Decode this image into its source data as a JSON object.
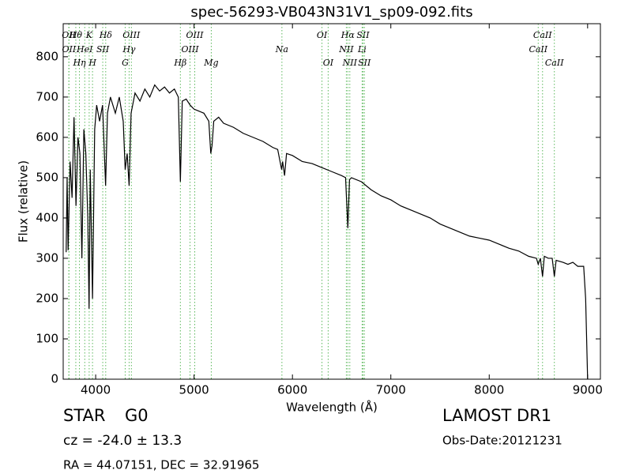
{
  "chart_data": {
    "type": "line",
    "title": "spec-56293-VB043N31V1_sp09-092.fits",
    "xlabel": "Wavelength (Å)",
    "ylabel": "Flux (relative)",
    "xlim": [
      3670,
      9130
    ],
    "ylim": [
      0,
      882
    ],
    "xticks": [
      4000,
      5000,
      6000,
      7000,
      8000,
      9000
    ],
    "yticks": [
      0,
      100,
      200,
      300,
      400,
      500,
      600,
      700,
      800
    ],
    "grid": false,
    "series": [
      {
        "color": "#000000",
        "x": [
          3700,
          3710,
          3720,
          3740,
          3760,
          3780,
          3800,
          3820,
          3840,
          3860,
          3880,
          3900,
          3920,
          3933,
          3945,
          3968,
          3990,
          4010,
          4040,
          4070,
          4101,
          4120,
          4150,
          4200,
          4240,
          4280,
          4300,
          4320,
          4340,
          4360,
          4400,
          4450,
          4500,
          4550,
          4600,
          4650,
          4700,
          4750,
          4800,
          4840,
          4861,
          4880,
          4920,
          4960,
          5000,
          5050,
          5100,
          5150,
          5170,
          5183,
          5200,
          5250,
          5300,
          5400,
          5500,
          5600,
          5700,
          5800,
          5850,
          5890,
          5900,
          5920,
          5940,
          6000,
          6100,
          6200,
          6300,
          6400,
          6500,
          6540,
          6563,
          6580,
          6600,
          6700,
          6800,
          6900,
          7000,
          7100,
          7200,
          7300,
          7400,
          7500,
          7600,
          7700,
          7800,
          7900,
          8000,
          8100,
          8200,
          8300,
          8400,
          8480,
          8498,
          8520,
          8542,
          8560,
          8600,
          8640,
          8662,
          8680,
          8750,
          8800,
          8850,
          8900,
          8960,
          8980,
          8995,
          9000
        ],
        "values": [
          315,
          500,
          320,
          540,
          450,
          650,
          430,
          600,
          560,
          300,
          620,
          560,
          400,
          175,
          520,
          200,
          620,
          680,
          640,
          680,
          480,
          660,
          700,
          660,
          700,
          640,
          520,
          560,
          480,
          660,
          710,
          690,
          720,
          700,
          730,
          715,
          725,
          710,
          720,
          700,
          490,
          690,
          695,
          680,
          670,
          665,
          660,
          640,
          560,
          580,
          640,
          650,
          635,
          625,
          610,
          600,
          590,
          575,
          570,
          520,
          540,
          505,
          560,
          555,
          540,
          535,
          525,
          515,
          505,
          500,
          375,
          495,
          500,
          490,
          470,
          455,
          445,
          430,
          420,
          410,
          400,
          385,
          375,
          365,
          355,
          350,
          345,
          335,
          325,
          318,
          305,
          300,
          285,
          300,
          255,
          305,
          300,
          300,
          255,
          295,
          290,
          285,
          290,
          280,
          280,
          200,
          50,
          0
        ]
      }
    ],
    "lines": [
      {
        "label": "Hθ",
        "x": 3798
      },
      {
        "label": "K",
        "x": 3934
      },
      {
        "label": "Hδ",
        "x": 4102
      },
      {
        "label": "OIII",
        "x": 4363
      },
      {
        "label": "OIII",
        "x": 5007
      },
      {
        "label": "OI",
        "x": 6300
      },
      {
        "label": "Hα",
        "x": 6563
      },
      {
        "label": "SII",
        "x": 6717
      },
      {
        "label": "CaII",
        "x": 8542
      },
      {
        "label": "OII",
        "x": 3727
      },
      {
        "label": "HeI",
        "x": 3889
      },
      {
        "label": "SII",
        "x": 4072
      },
      {
        "label": "Hγ",
        "x": 4340
      },
      {
        "label": "OIII",
        "x": 4959
      },
      {
        "label": "Na",
        "x": 5893
      },
      {
        "label": "NII",
        "x": 6548
      },
      {
        "label": "Li",
        "x": 6708
      },
      {
        "label": "CaII",
        "x": 8498
      },
      {
        "label": "OII",
        "x": 3729
      },
      {
        "label": "Hη",
        "x": 3835
      },
      {
        "label": "H",
        "x": 3968
      },
      {
        "label": "G",
        "x": 4300
      },
      {
        "label": "Hβ",
        "x": 4861
      },
      {
        "label": "Mg",
        "x": 5175
      },
      {
        "label": "OI",
        "x": 6363
      },
      {
        "label": "NII",
        "x": 6583
      },
      {
        "label": "SII",
        "x": 6731
      },
      {
        "label": "CaII",
        "x": 8662
      }
    ],
    "object_class": "STAR",
    "subclass": "G0",
    "redshift": "cz = -24.0 ± 13.3",
    "coords": "RA = 44.07151, DEC = 32.91965",
    "survey": "LAMOST DR1",
    "obs_date": "Obs-Date:20121231"
  }
}
